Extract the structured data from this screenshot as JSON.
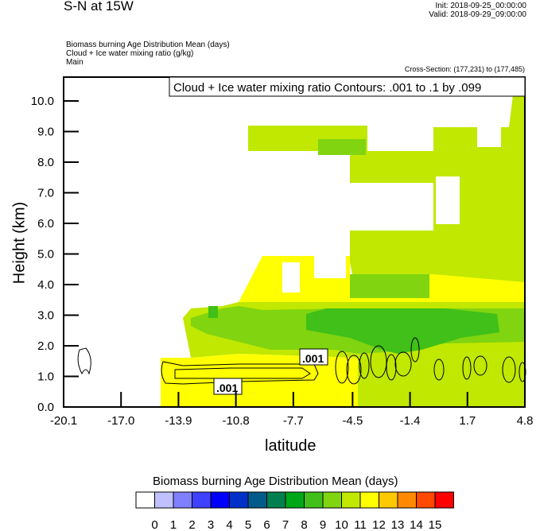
{
  "header": {
    "title": "S-N at 15W",
    "init": "Init: 2018-09-25_00:00:00",
    "valid": "Valid: 2018-09-29_09:00:00",
    "desc_lines": [
      "Biomass burning Age Distribution Mean   (days)",
      "Cloud + Ice water mixing ratio   (g/kg)",
      "Main"
    ],
    "cross_section": "Cross-Section: (177,231) to (177,485)"
  },
  "chart_data": {
    "type": "heatmap",
    "title": "Cloud + Ice water mixing ratio Contours: .001 to .1 by .099",
    "xlabel": "latitude",
    "ylabel": "Height (km)",
    "xlim": [
      -20.1,
      4.8
    ],
    "ylim": [
      0,
      10.8
    ],
    "x_ticks": [
      "-20.1",
      "-17.0",
      "-13.9",
      "-10.8",
      "-7.7",
      "-4.5",
      "-1.4",
      "1.7",
      "4.8"
    ],
    "x_tick_values": [
      -20.1,
      -17.0,
      -13.9,
      -10.8,
      -7.7,
      -4.5,
      -1.4,
      1.7,
      4.8
    ],
    "y_ticks": [
      "0.0",
      "1.0",
      "2.0",
      "3.0",
      "4.0",
      "5.0",
      "6.0",
      "7.0",
      "8.0",
      "9.0",
      "10.0"
    ],
    "y_tick_values": [
      0,
      1,
      2,
      3,
      4,
      5,
      6,
      7,
      8,
      9,
      10
    ],
    "contour_labels": [
      ".001",
      ".001"
    ],
    "colorbar": {
      "title": "Biomass burning Age Distribution Mean  (days)",
      "labels": [
        "0",
        "1",
        "2",
        "3",
        "4",
        "5",
        "6",
        "7",
        "8",
        "9",
        "10",
        "11",
        "12",
        "13",
        "14",
        "15"
      ],
      "colors": [
        "#ffffff",
        "#c0c0ff",
        "#8080ff",
        "#4040ff",
        "#0000ff",
        "#0030c8",
        "#005a8a",
        "#008050",
        "#00a818",
        "#40c018",
        "#80d410",
        "#c0e800",
        "#ffff00",
        "#ffc800",
        "#ff8800",
        "#ff4800",
        "#ff0000"
      ]
    }
  }
}
